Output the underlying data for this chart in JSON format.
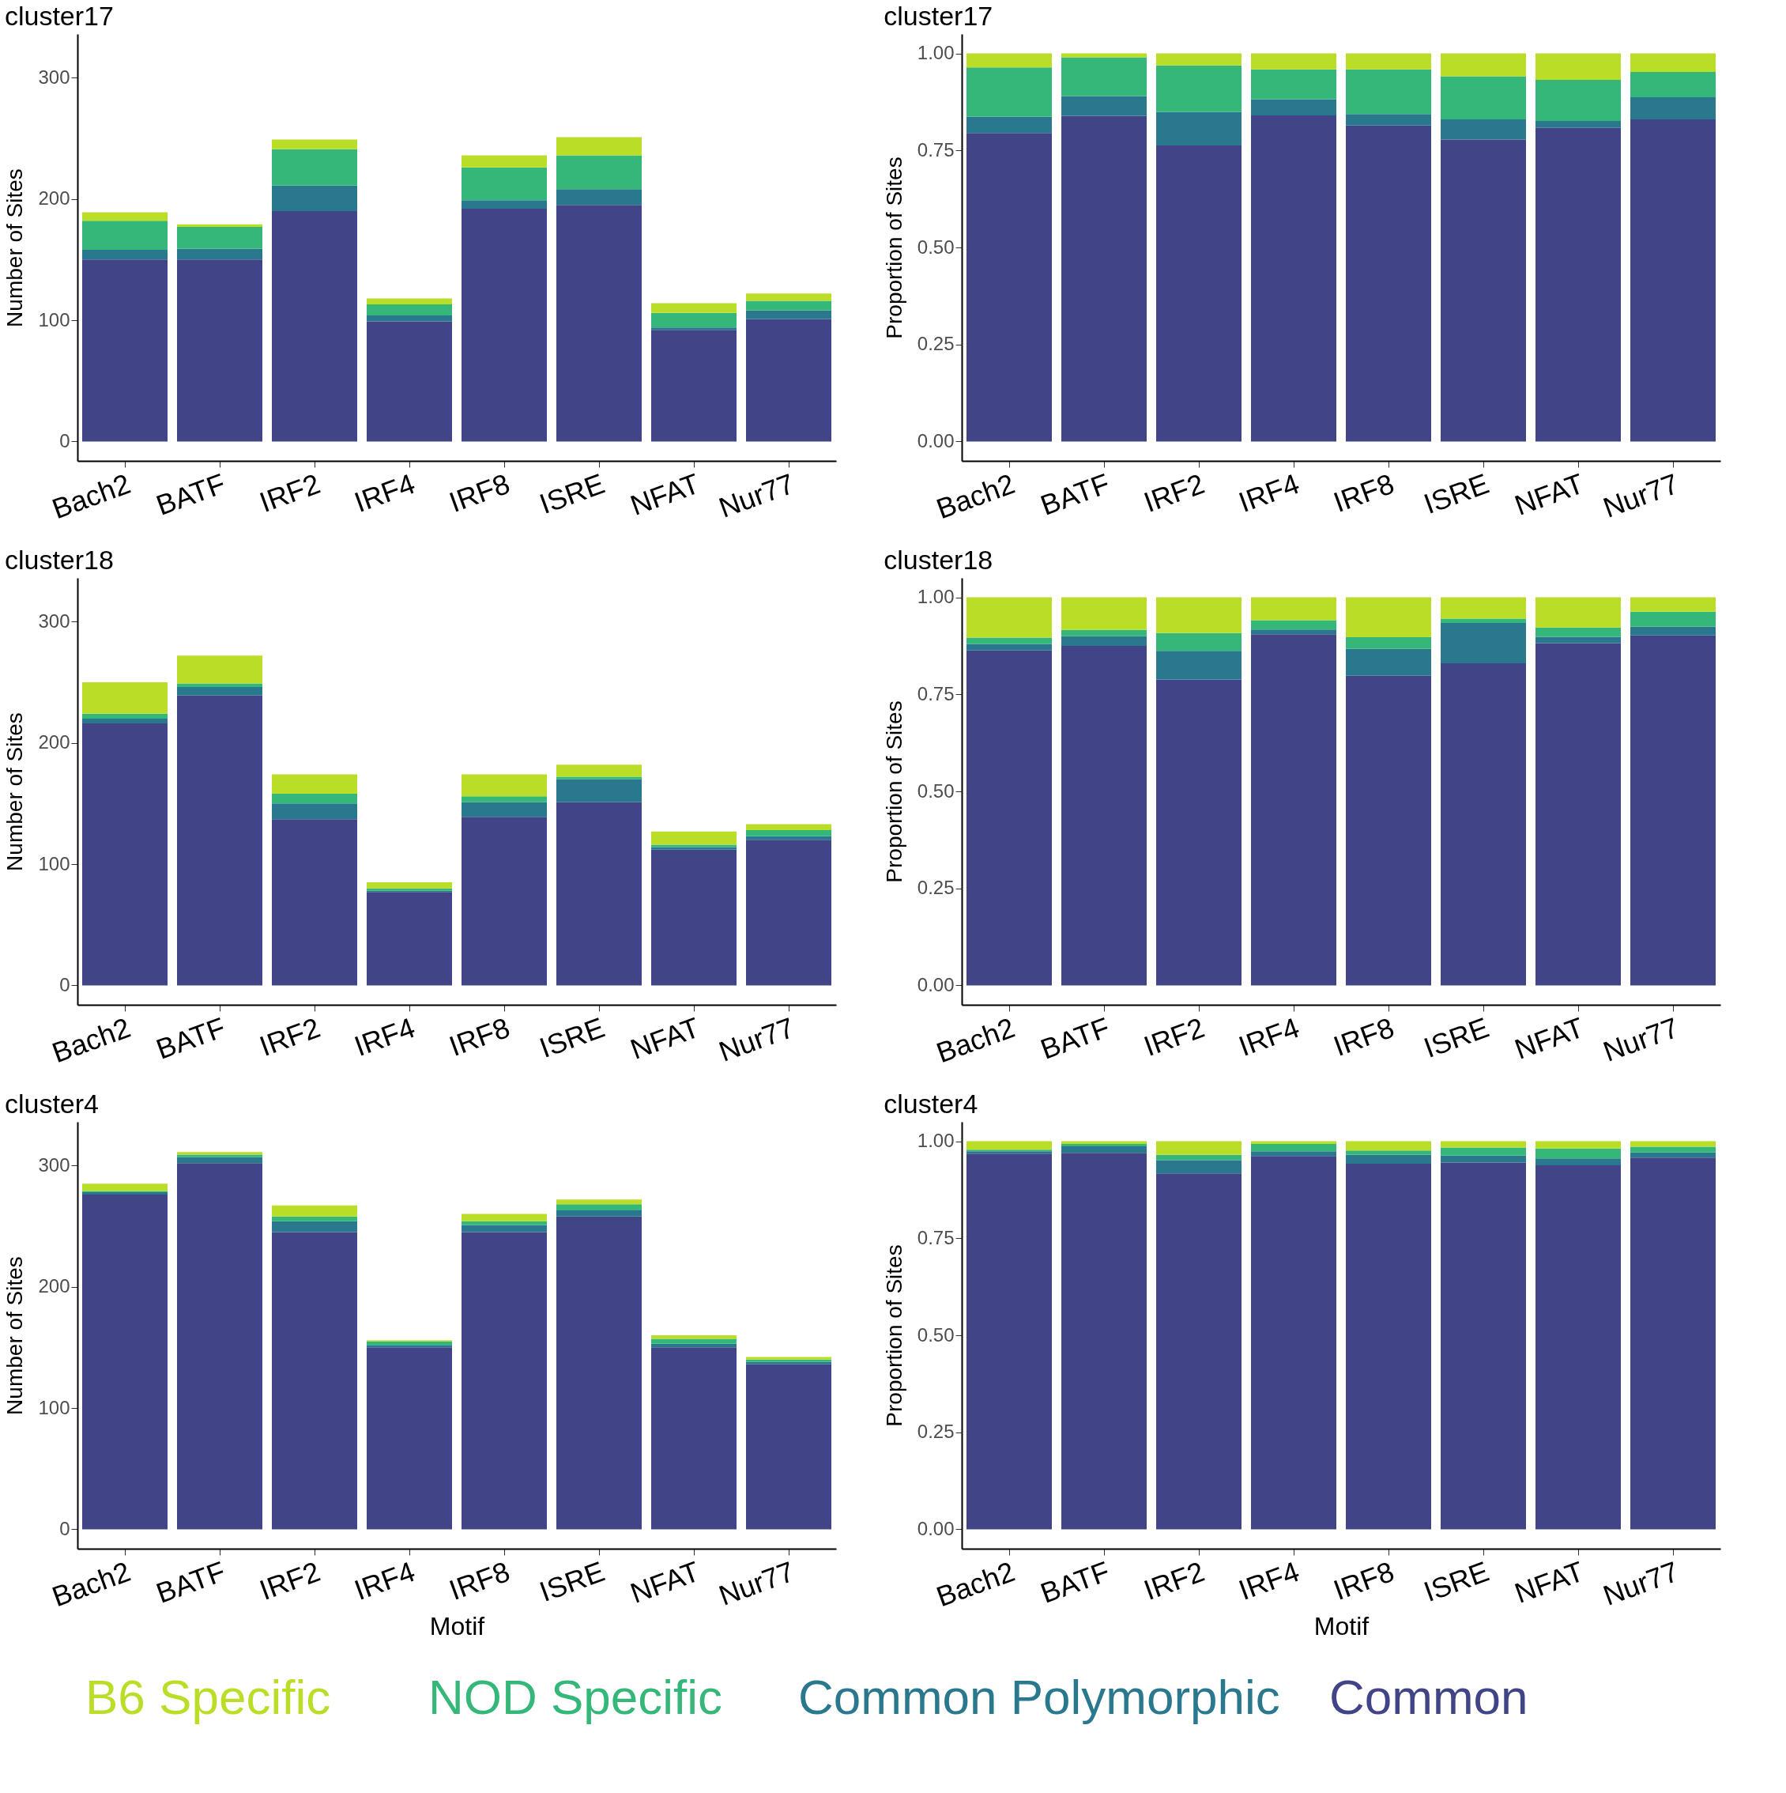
{
  "chart_data": [
    {
      "type": "bar",
      "stacked": true,
      "title": "cluster17",
      "ylabel": "Number of Sites",
      "categories": [
        "Bach2",
        "BATF",
        "IRF2",
        "IRF4",
        "IRF8",
        "ISRE",
        "NFAT",
        "Nur77"
      ],
      "ylim": [
        -16,
        336
      ],
      "yticks": [
        0,
        100,
        200,
        300
      ],
      "series": [
        {
          "color": "#414487",
          "values": [
            150,
            150,
            190,
            99,
            192,
            195,
            92,
            101
          ]
        },
        {
          "color": "#2a788e",
          "values": [
            8,
            9,
            21,
            5,
            7,
            13,
            2,
            7
          ]
        },
        {
          "color": "#35b779",
          "values": [
            24,
            18,
            30,
            9,
            27,
            28,
            12,
            8
          ]
        },
        {
          "color": "#bade28",
          "values": [
            7,
            2,
            8,
            5,
            10,
            15,
            8,
            6
          ]
        }
      ]
    },
    {
      "type": "bar",
      "stacked": true,
      "title": "cluster17",
      "ylabel": "Proportion of Sites",
      "categories": [
        "Bach2",
        "BATF",
        "IRF2",
        "IRF4",
        "IRF8",
        "ISRE",
        "NFAT",
        "Nur77"
      ],
      "ylim": [
        -0.05,
        1.05
      ],
      "yticks": [
        {
          "value": 0,
          "label": "0.00"
        },
        {
          "value": 0.25,
          "label": "0.25"
        },
        {
          "value": 0.5,
          "label": "0.50"
        },
        {
          "value": 0.75,
          "label": "0.75"
        },
        {
          "value": 1,
          "label": "1.00"
        }
      ],
      "series": [
        {
          "color": "#414487",
          "values": [
            0.795,
            0.839,
            0.763,
            0.84,
            0.814,
            0.778,
            0.808,
            0.83
          ]
        },
        {
          "color": "#2a788e",
          "values": [
            0.042,
            0.051,
            0.086,
            0.042,
            0.03,
            0.052,
            0.018,
            0.057
          ]
        },
        {
          "color": "#35b779",
          "values": [
            0.127,
            0.1,
            0.12,
            0.077,
            0.115,
            0.111,
            0.106,
            0.065
          ]
        },
        {
          "color": "#bade28",
          "values": [
            0.036,
            0.01,
            0.031,
            0.041,
            0.041,
            0.059,
            0.068,
            0.048
          ]
        }
      ]
    },
    {
      "type": "bar",
      "stacked": true,
      "title": "cluster18",
      "ylabel": "Number of Sites",
      "categories": [
        "Bach2",
        "BATF",
        "IRF2",
        "IRF4",
        "IRF8",
        "ISRE",
        "NFAT",
        "Nur77"
      ],
      "ylim": [
        -16,
        336
      ],
      "yticks": [
        0,
        100,
        200,
        300
      ],
      "series": [
        {
          "color": "#414487",
          "values": [
            216,
            239,
            137,
            77,
            139,
            151,
            112,
            120
          ]
        },
        {
          "color": "#2a788e",
          "values": [
            4,
            7,
            13,
            1,
            12,
            19,
            2,
            3
          ]
        },
        {
          "color": "#35b779",
          "values": [
            4,
            3,
            8,
            2,
            5,
            2,
            2,
            5
          ]
        },
        {
          "color": "#bade28",
          "values": [
            26,
            23,
            16,
            5,
            18,
            10,
            11,
            5
          ]
        }
      ]
    },
    {
      "type": "bar",
      "stacked": true,
      "title": "cluster18",
      "ylabel": "Proportion of Sites",
      "categories": [
        "Bach2",
        "BATF",
        "IRF2",
        "IRF4",
        "IRF8",
        "ISRE",
        "NFAT",
        "Nur77"
      ],
      "ylim": [
        -0.05,
        1.05
      ],
      "yticks": [
        {
          "value": 0,
          "label": "0.00"
        },
        {
          "value": 0.25,
          "label": "0.25"
        },
        {
          "value": 0.5,
          "label": "0.50"
        },
        {
          "value": 0.75,
          "label": "0.75"
        },
        {
          "value": 1,
          "label": "1.00"
        }
      ],
      "series": [
        {
          "color": "#414487",
          "values": [
            0.863,
            0.875,
            0.788,
            0.905,
            0.798,
            0.83,
            0.882,
            0.902
          ]
        },
        {
          "color": "#2a788e",
          "values": [
            0.017,
            0.025,
            0.074,
            0.012,
            0.069,
            0.104,
            0.016,
            0.022
          ]
        },
        {
          "color": "#35b779",
          "values": [
            0.016,
            0.016,
            0.046,
            0.024,
            0.03,
            0.011,
            0.024,
            0.039
          ]
        },
        {
          "color": "#bade28",
          "values": [
            0.104,
            0.084,
            0.092,
            0.059,
            0.103,
            0.055,
            0.078,
            0.037
          ]
        }
      ]
    },
    {
      "type": "bar",
      "stacked": true,
      "title": "cluster4",
      "ylabel": "Number of Sites",
      "xlabel": "Motif",
      "categories": [
        "Bach2",
        "BATF",
        "IRF2",
        "IRF4",
        "IRF8",
        "ISRE",
        "NFAT",
        "Nur77"
      ],
      "ylim": [
        -16,
        336
      ],
      "yticks": [
        0,
        100,
        200,
        300
      ],
      "series": [
        {
          "color": "#414487",
          "values": [
            276,
            302,
            245,
            150,
            245,
            258,
            150,
            136
          ]
        },
        {
          "color": "#2a788e",
          "values": [
            2,
            5,
            9,
            2,
            6,
            5,
            3,
            2
          ]
        },
        {
          "color": "#35b779",
          "values": [
            1,
            2,
            4,
            3,
            3,
            5,
            4,
            2
          ]
        },
        {
          "color": "#bade28",
          "values": [
            6,
            2,
            9,
            1,
            6,
            4,
            3,
            2
          ]
        }
      ]
    },
    {
      "type": "bar",
      "stacked": true,
      "title": "cluster4",
      "ylabel": "Proportion of Sites",
      "xlabel": "Motif",
      "categories": [
        "Bach2",
        "BATF",
        "IRF2",
        "IRF4",
        "IRF8",
        "ISRE",
        "NFAT",
        "Nur77"
      ],
      "ylim": [
        -0.05,
        1.05
      ],
      "yticks": [
        {
          "value": 0,
          "label": "0.00"
        },
        {
          "value": 0.25,
          "label": "0.25"
        },
        {
          "value": 0.5,
          "label": "0.50"
        },
        {
          "value": 0.75,
          "label": "0.75"
        },
        {
          "value": 1,
          "label": "1.00"
        }
      ],
      "series": [
        {
          "name": "Common",
          "color": "#414487",
          "values": [
            0.968,
            0.97,
            0.917,
            0.962,
            0.942,
            0.945,
            0.938,
            0.958
          ]
        },
        {
          "name": "Common Polymorphic",
          "color": "#2a788e",
          "values": [
            0.006,
            0.017,
            0.034,
            0.012,
            0.023,
            0.018,
            0.018,
            0.013
          ]
        },
        {
          "name": "NOD Specific",
          "color": "#35b779",
          "values": [
            0.004,
            0.006,
            0.014,
            0.019,
            0.011,
            0.021,
            0.025,
            0.015
          ]
        },
        {
          "name": "B6 Specific",
          "color": "#bade28",
          "values": [
            0.022,
            0.007,
            0.035,
            0.007,
            0.024,
            0.016,
            0.019,
            0.014
          ]
        }
      ]
    }
  ]
}
